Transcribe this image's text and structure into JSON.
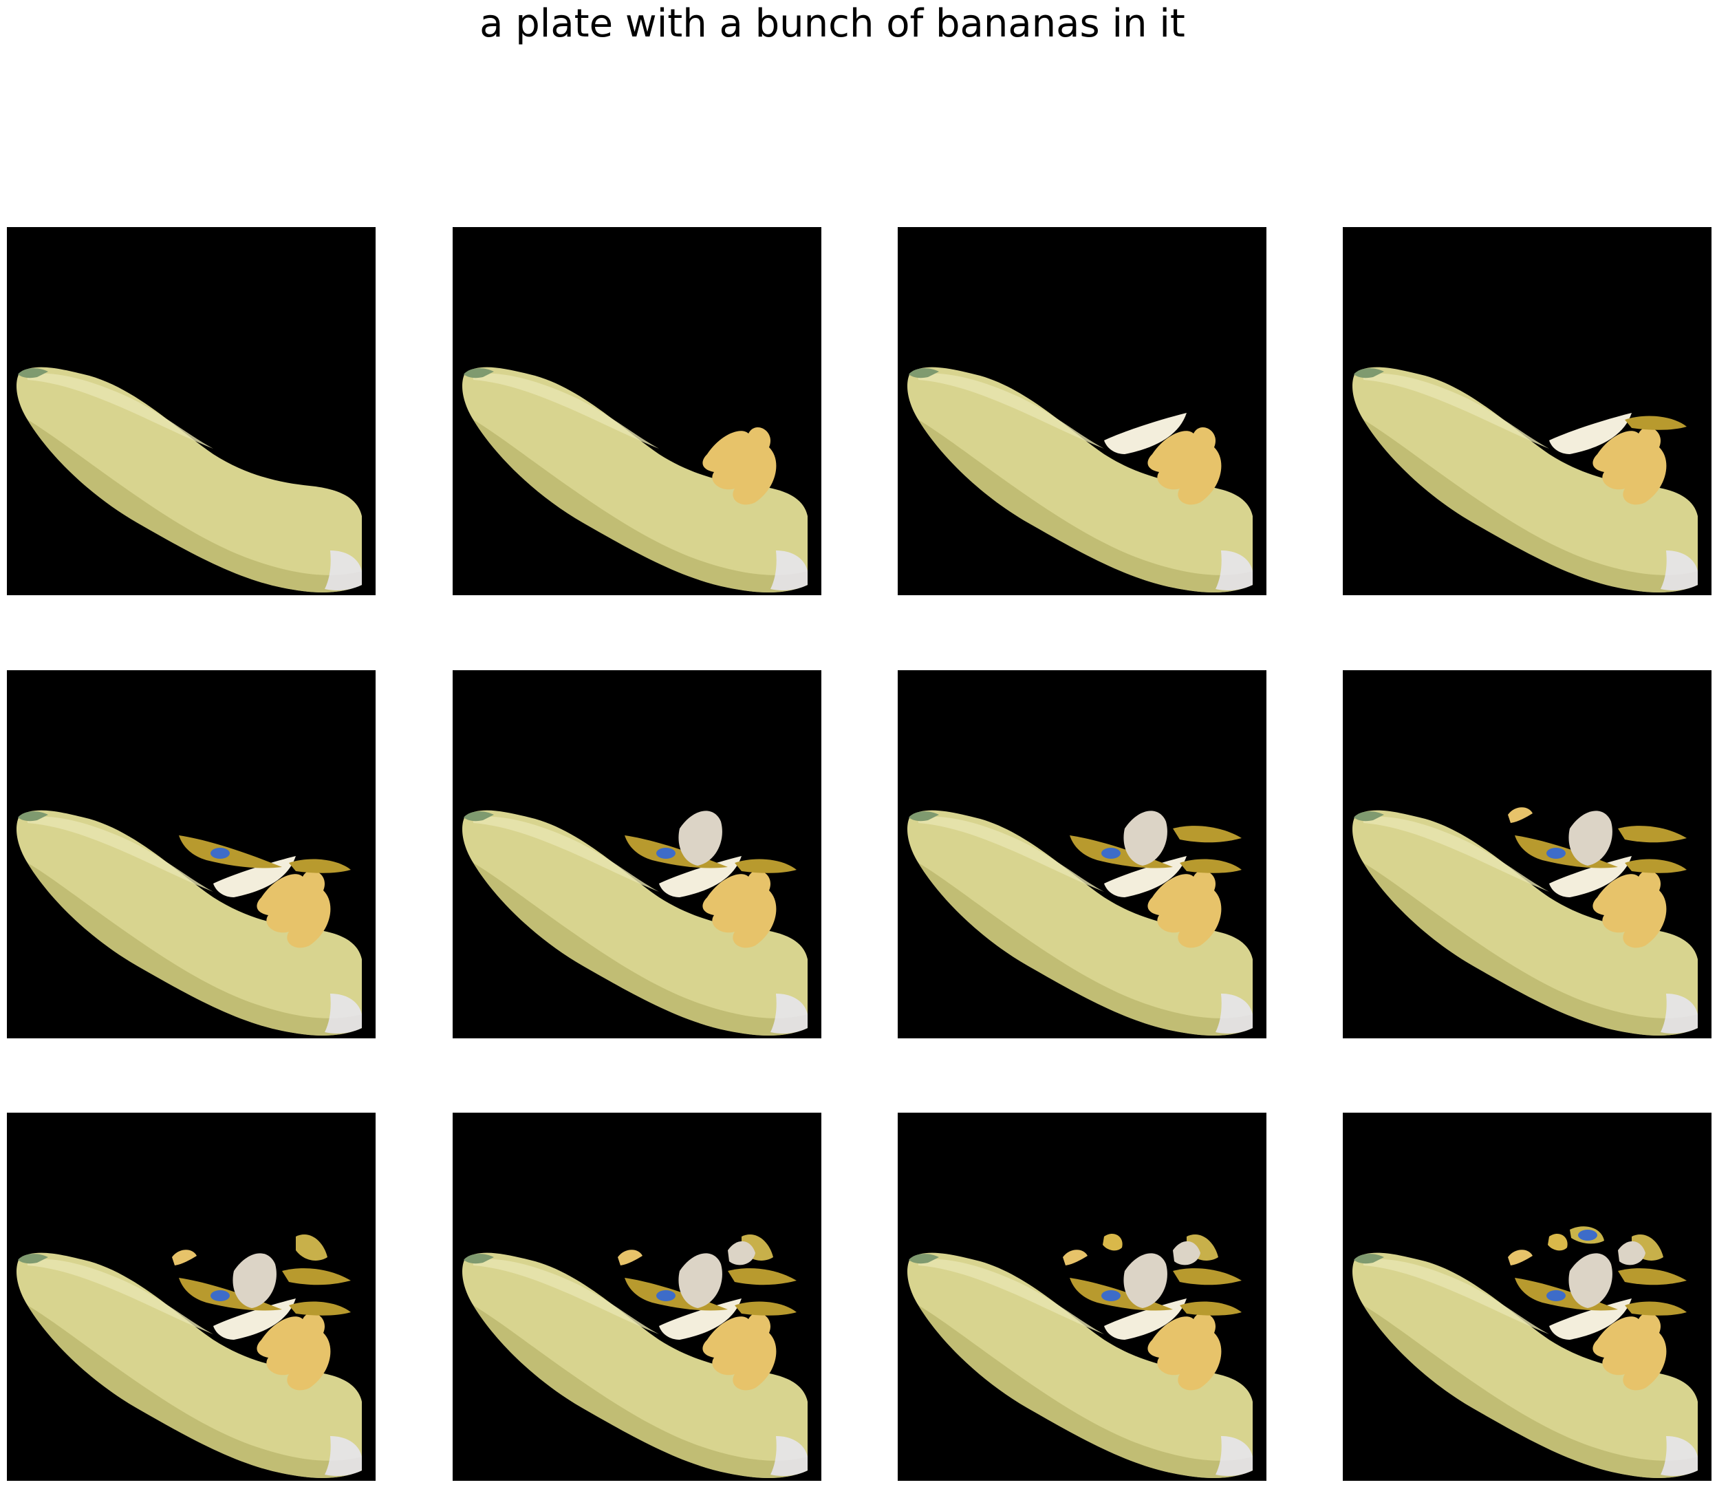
{
  "figure": {
    "title": "a plate with a bunch of bananas in it",
    "panels": [
      {
        "stage": 0
      },
      {
        "stage": 1
      },
      {
        "stage": 2
      },
      {
        "stage": 3
      },
      {
        "stage": 4
      },
      {
        "stage": 5
      },
      {
        "stage": 6
      },
      {
        "stage": 7
      },
      {
        "stage": 8
      },
      {
        "stage": 9
      },
      {
        "stage": 10
      },
      {
        "stage": 11
      }
    ]
  },
  "colors": {
    "background": "#ffffff",
    "panel_background": "#000000",
    "banana_body": "#d8d48f",
    "banana_shadow": "#b9b56b",
    "banana_highlight": "#e9e5b0",
    "banana_tip": "#7f9a6f",
    "peel_fragment": "#e7c36a",
    "peel_dark": "#b89a2e",
    "white_fragment": "#f3eedc",
    "sticker_blue": "#3d6cc9",
    "pale_fragment": "#dcd4c6"
  }
}
